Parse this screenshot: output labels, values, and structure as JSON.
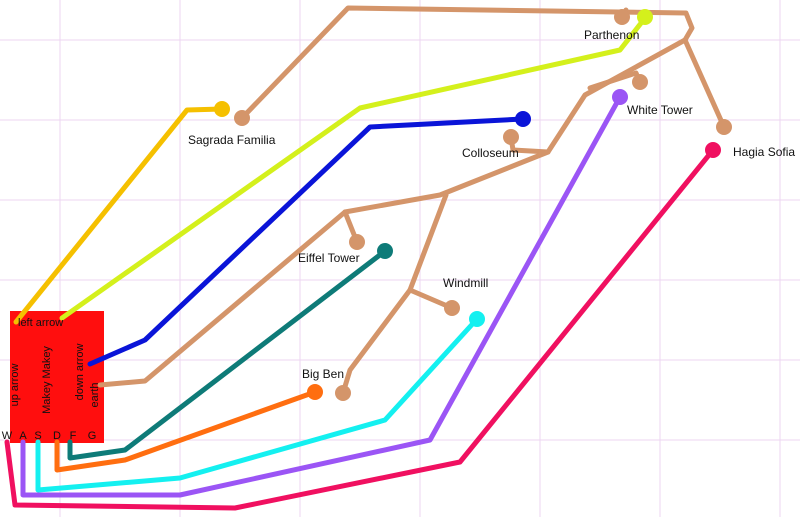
{
  "landmarks": {
    "parthenon": "Parthenon",
    "sagrada_familia": "Sagrada Familia",
    "white_tower": "White Tower",
    "colloseum": "Colloseum",
    "hagia_sofia": "Hagia Sofia",
    "eiffel_tower": "Eiffel Tower",
    "windmill": "Windmill",
    "big_ben": "Big Ben"
  },
  "board": {
    "name": "Makey Makey",
    "up": "up arrow",
    "left": "left arrow",
    "down": "down arrow",
    "earth": "earth",
    "keys": [
      "W",
      "A",
      "S",
      "D",
      "F",
      "G"
    ]
  }
}
